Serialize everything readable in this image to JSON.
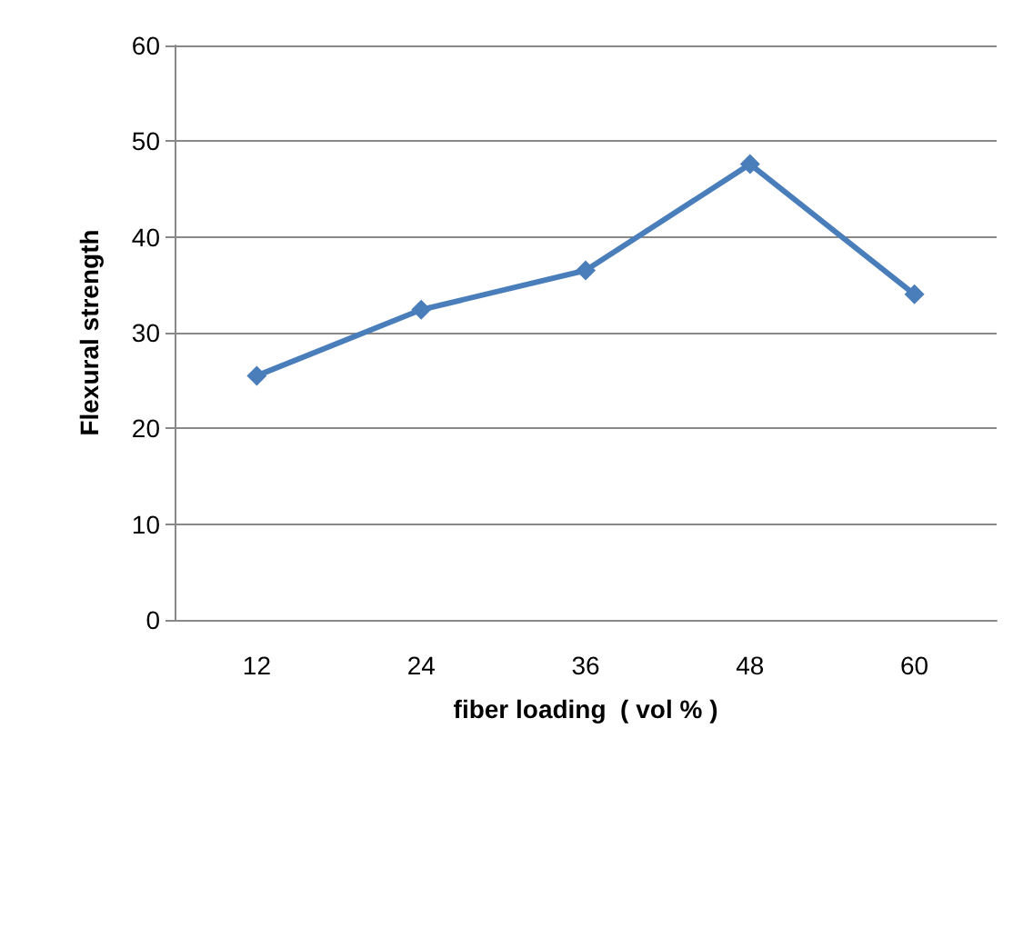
{
  "chart_data": {
    "type": "line",
    "xlabel": "fiber loading  ( vol % )",
    "ylabel": "Flexural strength",
    "categories": [
      "12",
      "24",
      "36",
      "48",
      "60"
    ],
    "series": [
      {
        "color": "#4a7ebb",
        "values": [
          25.5,
          32.4,
          36.5,
          47.6,
          34.0
        ]
      }
    ],
    "ylim": [
      0,
      60
    ],
    "yticks": [
      0,
      10,
      20,
      30,
      40,
      50,
      60
    ],
    "grid": "y",
    "marker": "diamond",
    "line_style": "solid"
  }
}
